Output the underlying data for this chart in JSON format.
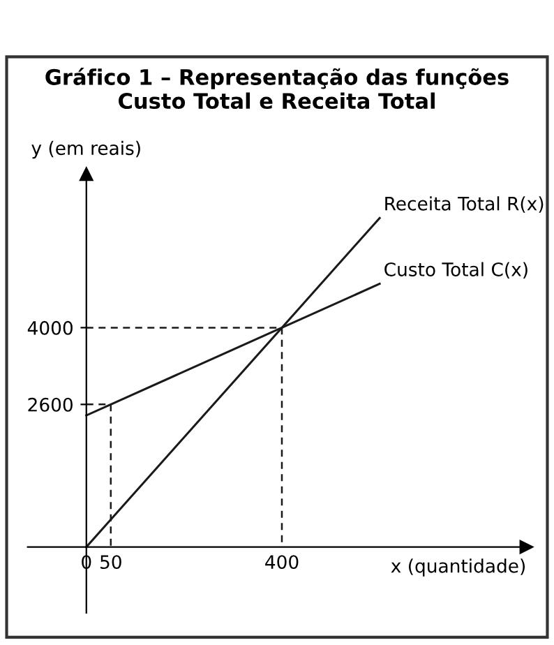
{
  "chart_data": {
    "type": "line",
    "title": "Gráfico 1 – Representação das funções\nCusto Total e Receita Total",
    "xlabel": "x (quantidade)",
    "ylabel": "y (em reais)",
    "series": [
      {
        "name": "Receita Total R(x)",
        "color": "#1a1a1a",
        "x": [
          0,
          400,
          600
        ],
        "values": [
          0,
          4000,
          6000
        ]
      },
      {
        "name": "Custo Total C(x)",
        "color": "#1a1a1a",
        "x": [
          0,
          50,
          400,
          600
        ],
        "values": [
          2400,
          2600,
          4000,
          4800
        ]
      },
      {
        "color": "#1a1a1a",
        "line_style": "dashed",
        "x": [
          0,
          400,
          400
        ],
        "values": [
          4000,
          4000,
          0
        ]
      },
      {
        "color": "#1a1a1a",
        "line_style": "dashed",
        "x": [
          0,
          50,
          50
        ],
        "values": [
          2600,
          2600,
          0
        ]
      }
    ],
    "xlim": [
      -120,
      900
    ],
    "ylim": [
      -1200,
      6800
    ],
    "xticks": [
      0,
      50,
      400
    ],
    "yticks": [
      2600,
      4000
    ],
    "marker": "none",
    "line_style": "solid",
    "grid": false,
    "legend": false
  }
}
